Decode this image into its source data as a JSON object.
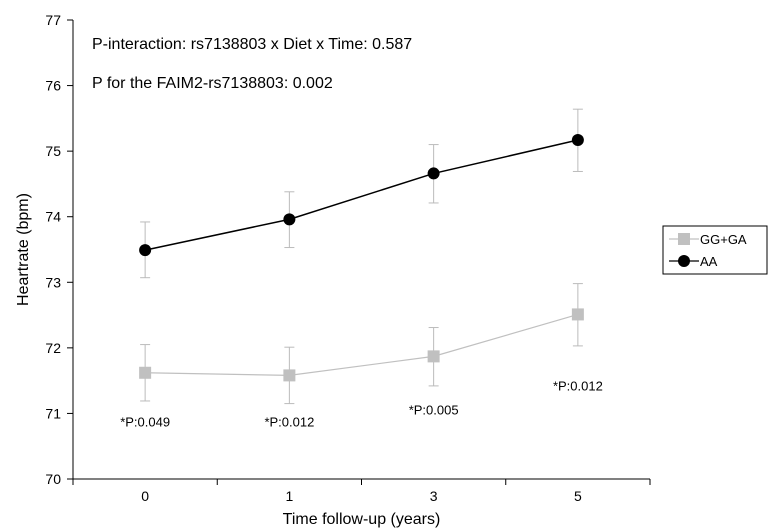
{
  "chart_data": {
    "type": "line",
    "title": "",
    "xlabel": "Time follow-up (years)",
    "ylabel": "Heartrate (bpm)",
    "ylim": [
      70,
      77
    ],
    "yticks": [
      "70",
      "71",
      "72",
      "73",
      "74",
      "75",
      "76",
      "77"
    ],
    "categories": [
      "0",
      "1",
      "3",
      "5"
    ],
    "annotations": [
      "P-interaction: rs7138803 x Diet x Time: 0.587",
      "P for the FAIM2-rs7138803: 0.002"
    ],
    "p_labels": [
      {
        "text": "*P:0.049",
        "y": 70.8
      },
      {
        "text": "*P:0.012",
        "y": 70.8
      },
      {
        "text": "*P:0.005",
        "y": 70.98
      },
      {
        "text": "*P:0.012",
        "y": 71.35
      }
    ],
    "legend_position": "right",
    "series": [
      {
        "name": "GG+GA",
        "color": "#c0c0c0",
        "marker": "square",
        "values": [
          71.62,
          71.58,
          71.87,
          72.51
        ],
        "err_low": [
          71.19,
          71.15,
          71.42,
          72.03
        ],
        "err_high": [
          72.05,
          72.01,
          72.31,
          72.98
        ]
      },
      {
        "name": "AA",
        "color": "#000000",
        "marker": "circle",
        "values": [
          73.49,
          73.96,
          74.66,
          75.17
        ],
        "err_low": [
          73.07,
          73.53,
          74.21,
          74.69
        ],
        "err_high": [
          73.92,
          74.38,
          75.1,
          75.64
        ]
      }
    ]
  }
}
